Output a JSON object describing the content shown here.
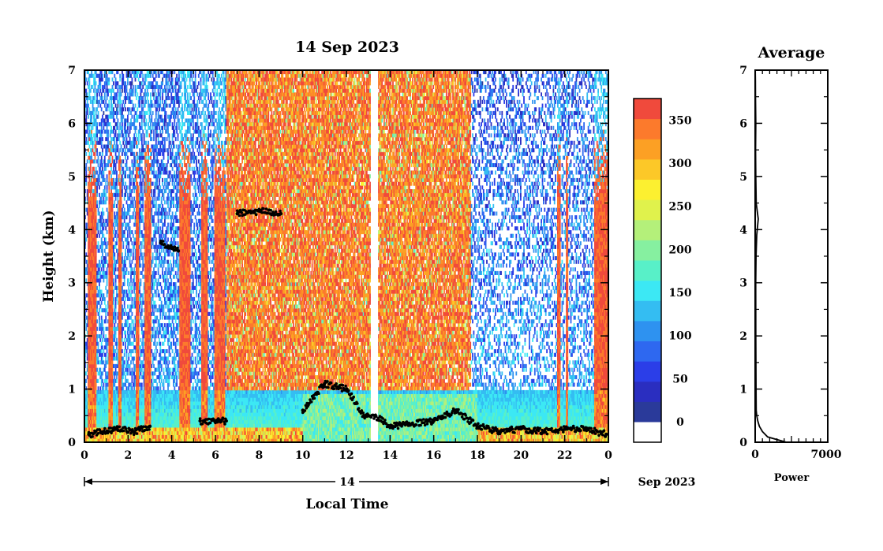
{
  "chart_data": [
    {
      "type": "heatmap",
      "title": "14 Sep 2023",
      "xlabel": "Local Time",
      "ylabel": "Height (km)",
      "xlim": [
        0,
        24
      ],
      "ylim": [
        0,
        7
      ],
      "x_ticks": [
        "0",
        "2",
        "4",
        "6",
        "8",
        "10",
        "12",
        "14",
        "16",
        "18",
        "20",
        "22",
        "0"
      ],
      "y_ticks": [
        "0",
        "1",
        "2",
        "3",
        "4",
        "5",
        "6",
        "7"
      ],
      "date_axis": {
        "label": "14",
        "suffix": "Sep 2023"
      },
      "colorbar": {
        "ticks": [
          "0",
          "50",
          "100",
          "150",
          "200",
          "250",
          "300",
          "350"
        ],
        "range": [
          0,
          375
        ],
        "colors": [
          "#2a3a9a",
          "#2a2ec0",
          "#2b3ee8",
          "#2e68f0",
          "#2e92f0",
          "#34bdf2",
          "#3ce8f4",
          "#58f0c8",
          "#86f0a0",
          "#b4f07a",
          "#e0f24c",
          "#fcf030",
          "#fcc828",
          "#fca024",
          "#fc7a2c",
          "#f04a3c"
        ]
      },
      "cloud_base_overlay": "black points marking detected layers",
      "series": [
        {
          "x": [
            0.2,
            1.5,
            2.3,
            3.0,
            3.5,
            4.3,
            5.3,
            6.0,
            6.5,
            7.0,
            8.0,
            9.0,
            10.0,
            11.0,
            12.0,
            12.8,
            13.3,
            14.0,
            15.0,
            16.0,
            17.0,
            18.0,
            19.0,
            20.0,
            21.0,
            22.0,
            23.0,
            23.9
          ],
          "y": [
            0.15,
            0.25,
            0.2,
            0.3,
            3.75,
            3.6,
            0.4,
            0.4,
            0.4,
            4.3,
            4.35,
            4.3,
            0.6,
            1.1,
            1.0,
            0.5,
            0.5,
            0.3,
            0.35,
            0.4,
            0.6,
            0.3,
            0.2,
            0.25,
            0.2,
            0.25,
            0.25,
            0.15
          ]
        }
      ]
    },
    {
      "type": "line",
      "title": "Average",
      "xlabel": "Power",
      "ylabel": "",
      "xlim": [
        0,
        7000
      ],
      "ylim": [
        0,
        7
      ],
      "x_ticks": [
        "0",
        "7000"
      ],
      "y_ticks": [
        "0",
        "1",
        "2",
        "3",
        "4",
        "5",
        "6",
        "7"
      ],
      "series": [
        {
          "x": [
            3000,
            1200,
            700,
            400,
            250,
            150,
            100,
            80,
            60,
            50,
            80,
            150,
            300,
            100,
            60,
            40,
            60,
            30,
            20,
            10
          ],
          "y": [
            0.0,
            0.1,
            0.2,
            0.3,
            0.4,
            0.5,
            0.6,
            1.0,
            2.0,
            3.0,
            3.5,
            3.9,
            4.2,
            4.5,
            5.0,
            5.5,
            6.0,
            6.5,
            6.8,
            7.0
          ]
        }
      ]
    }
  ]
}
